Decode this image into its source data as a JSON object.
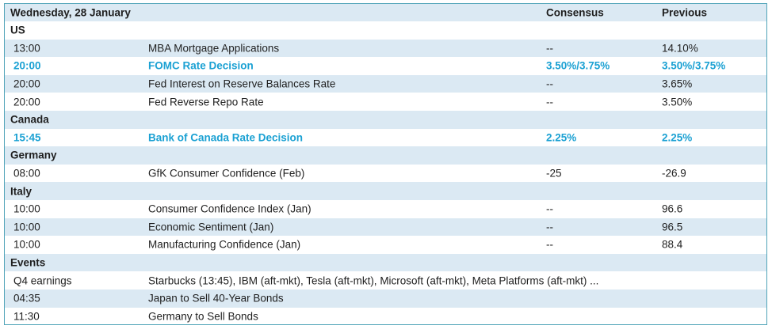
{
  "header": {
    "date": "Wednesday, 28 January",
    "consensus": "Consensus",
    "previous": "Previous"
  },
  "sections": [
    {
      "name": "US",
      "rows": [
        {
          "time": "13:00",
          "event": "MBA Mortgage Applications",
          "consensus": "--",
          "previous": "14.10%"
        },
        {
          "time": "20:00",
          "event": "FOMC Rate Decision",
          "consensus": "3.50%/3.75%",
          "previous": "3.50%/3.75%",
          "highlight": true
        },
        {
          "time": "20:00",
          "event": "Fed Interest on Reserve Balances Rate",
          "consensus": "--",
          "previous": "3.65%"
        },
        {
          "time": "20:00",
          "event": "Fed Reverse Repo Rate",
          "consensus": "--",
          "previous": "3.50%"
        }
      ]
    },
    {
      "name": "Canada",
      "rows": [
        {
          "time": "15:45",
          "event": "Bank of Canada Rate Decision",
          "consensus": "2.25%",
          "previous": "2.25%",
          "highlight": true
        }
      ]
    },
    {
      "name": "Germany",
      "rows": [
        {
          "time": "08:00",
          "event": "GfK Consumer Confidence (Feb)",
          "consensus": "-25",
          "previous": "-26.9"
        }
      ]
    },
    {
      "name": "Italy",
      "rows": [
        {
          "time": "10:00",
          "event": "Consumer Confidence Index (Jan)",
          "consensus": "--",
          "previous": "96.6"
        },
        {
          "time": "10:00",
          "event": "Economic Sentiment (Jan)",
          "consensus": "--",
          "previous": "96.5"
        },
        {
          "time": "10:00",
          "event": "Manufacturing Confidence (Jan)",
          "consensus": "--",
          "previous": "88.4"
        }
      ]
    },
    {
      "name": "Events",
      "rows": [
        {
          "time": "Q4 earnings",
          "event": "Starbucks (13:45), IBM (aft-mkt), Tesla (aft-mkt), Microsoft (aft-mkt), Meta Platforms (aft-mkt) ..."
        },
        {
          "time": "04:35",
          "event": "Japan to Sell 40-Year Bonds"
        },
        {
          "time": "11:30",
          "event": "Germany to Sell Bonds"
        }
      ]
    }
  ]
}
